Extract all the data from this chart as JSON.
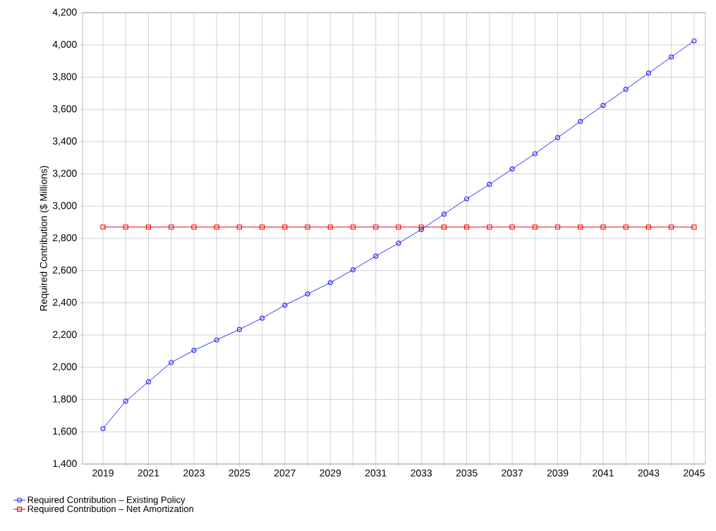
{
  "chart_data": {
    "type": "line",
    "ylabel": "Required Contribution ($ Millions)",
    "x": [
      2019,
      2020,
      2021,
      2022,
      2023,
      2024,
      2025,
      2026,
      2027,
      2028,
      2029,
      2030,
      2031,
      2032,
      2033,
      2034,
      2035,
      2036,
      2037,
      2038,
      2039,
      2040,
      2041,
      2042,
      2043,
      2044,
      2045
    ],
    "series": [
      {
        "name": "Required Contribution – Existing Policy",
        "color": "#3030ff",
        "marker": "circle",
        "values": [
          1620,
          1790,
          1910,
          2030,
          2105,
          2170,
          2235,
          2305,
          2385,
          2455,
          2525,
          2605,
          2690,
          2770,
          2855,
          2950,
          3045,
          3135,
          3230,
          3325,
          3425,
          3525,
          3625,
          3725,
          3825,
          3925,
          4025
        ]
      },
      {
        "name": "Required Contribution – Net Amortization",
        "color": "#ff0000",
        "marker": "square",
        "values": [
          2870,
          2870,
          2870,
          2870,
          2870,
          2870,
          2870,
          2870,
          2870,
          2870,
          2870,
          2870,
          2870,
          2870,
          2870,
          2870,
          2870,
          2870,
          2870,
          2870,
          2870,
          2870,
          2870,
          2870,
          2870,
          2870,
          2870
        ]
      }
    ],
    "xlim": [
      2018.1,
      2045.5
    ],
    "xticks": [
      2019,
      {
        "value": 2020,
        "label": null
      },
      2021,
      {
        "value": 2022,
        "label": null
      },
      2023,
      {
        "value": 2024,
        "label": null
      },
      2025,
      {
        "value": 2026,
        "label": null
      },
      2027,
      {
        "value": 2028,
        "label": null
      },
      2029,
      {
        "value": 2030,
        "label": null
      },
      2031,
      {
        "value": 2032,
        "label": null
      },
      2033,
      {
        "value": 2034,
        "label": null
      },
      2035,
      {
        "value": 2036,
        "label": null
      },
      2037,
      {
        "value": 2038,
        "label": null
      },
      2039,
      {
        "value": 2040,
        "label": null
      },
      2041,
      {
        "value": 2042,
        "label": null
      },
      2043,
      {
        "value": 2044,
        "label": null
      },
      2045
    ],
    "ylim": [
      1400,
      4200
    ],
    "yticks": [
      {
        "value": 1400,
        "label": "1,400"
      },
      {
        "value": 1600,
        "label": "1,600"
      },
      {
        "value": 1800,
        "label": "1,800"
      },
      {
        "value": 2000,
        "label": "2,000"
      },
      {
        "value": 2200,
        "label": "2,200"
      },
      {
        "value": 2400,
        "label": "2,400"
      },
      {
        "value": 2600,
        "label": "2,600"
      },
      {
        "value": 2800,
        "label": "2,800"
      },
      {
        "value": 3000,
        "label": "3,000"
      },
      {
        "value": 3200,
        "label": "3,200"
      },
      {
        "value": 3400,
        "label": "3,400"
      },
      {
        "value": 3600,
        "label": "3,600"
      },
      {
        "value": 3800,
        "label": "3,800"
      },
      {
        "value": 4000,
        "label": "4,000"
      },
      {
        "value": 4200,
        "label": "4,200"
      }
    ],
    "grid": true,
    "legend": "bottom left",
    "line_style": "solid"
  }
}
